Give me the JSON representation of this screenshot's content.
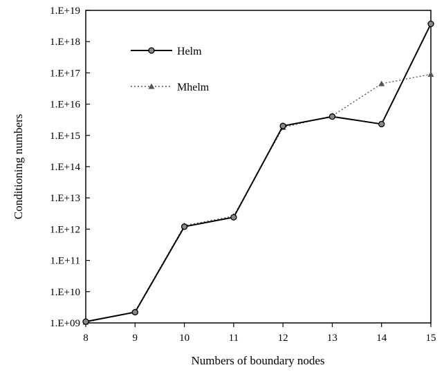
{
  "chart_data": {
    "type": "line",
    "xlabel": "Numbers of boundary nodes",
    "ylabel": "Conditioning numbers",
    "x": [
      8,
      9,
      10,
      11,
      12,
      13,
      14,
      15
    ],
    "xlim": [
      8,
      15
    ],
    "yscale": "log",
    "ylim": [
      1000000000.0,
      1e+19
    ],
    "y_ticks": [
      "1.E+09",
      "1.E+10",
      "1.E+11",
      "1.E+12",
      "1.E+13",
      "1.E+14",
      "1.E+15",
      "1.E+16",
      "1.E+17",
      "1.E+18",
      "1.E+19"
    ],
    "x_ticks": [
      "8",
      "9",
      "10",
      "11",
      "12",
      "13",
      "14",
      "15"
    ],
    "grid": false,
    "legend_position": "upper-left",
    "series": [
      {
        "name": "Helm",
        "style": "solid",
        "marker": "circle",
        "color": "#000000",
        "values": [
          1100000000.0,
          2200000000.0,
          1200000000000.0,
          2400000000000.0,
          2000000000000000.0,
          4000000000000000.0,
          2300000000000000.0,
          3.7e+18
        ]
      },
      {
        "name": "Mhelm",
        "style": "dotted",
        "marker": "triangle",
        "color": "#555555",
        "values": [
          1050000000.0,
          2300000000.0,
          1300000000000.0,
          2600000000000.0,
          1800000000000000.0,
          4200000000000000.0,
          4.5e+16,
          9e+16
        ]
      }
    ]
  }
}
